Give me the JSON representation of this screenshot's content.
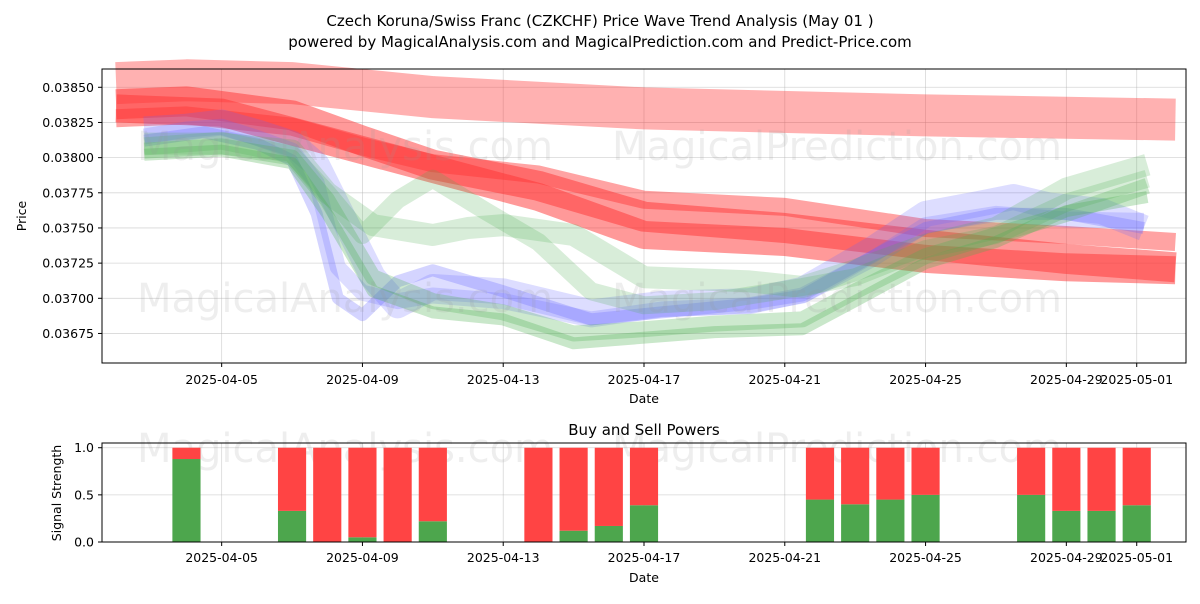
{
  "title_line1": "Czech Koruna/Swiss Franc (CZKCHF) Price Wave Trend Analysis (May 01 )",
  "title_line2": "powered by MagicalAnalysis.com and MagicalPrediction.com and Predict-Price.com",
  "watermarks": [
    "MagicalAnalysis.com",
    "MagicalPrediction.com"
  ],
  "colors": {
    "red": "#ff3333",
    "blue": "#6666ff",
    "green": "#4caf50",
    "buy": "#4da64d",
    "sell": "#ff4444"
  },
  "chart_data": [
    {
      "type": "line",
      "title": "",
      "xlabel": "Date",
      "ylabel": "Price",
      "xlim": [
        -3.4,
        27.4
      ],
      "ylim": [
        0.03654,
        0.03863
      ],
      "grid": true,
      "x_ticks": [
        {
          "day": 0,
          "label": "2025-04-05"
        },
        {
          "day": 4,
          "label": "2025-04-09"
        },
        {
          "day": 8,
          "label": "2025-04-13"
        },
        {
          "day": 12,
          "label": "2025-04-17"
        },
        {
          "day": 16,
          "label": "2025-04-21"
        },
        {
          "day": 20,
          "label": "2025-04-25"
        },
        {
          "day": 24,
          "label": "2025-04-29"
        },
        {
          "day": 26,
          "label": "2025-05-01"
        }
      ],
      "y_ticks": [
        {
          "value": 0.03675,
          "label": "0.03675"
        },
        {
          "value": 0.037,
          "label": "0.03700"
        },
        {
          "value": 0.03725,
          "label": "0.03725"
        },
        {
          "value": 0.0375,
          "label": "0.03750"
        },
        {
          "value": 0.03775,
          "label": "0.03775"
        },
        {
          "value": 0.038,
          "label": "0.03800"
        },
        {
          "value": 0.03825,
          "label": "0.03825"
        },
        {
          "value": 0.0385,
          "label": "0.03850"
        }
      ],
      "series": [
        {
          "name": "red-trend-1",
          "color": "red",
          "x": [
            -3,
            -1,
            2,
            6,
            12,
            20,
            27.1
          ],
          "y": [
            0.03853,
            0.03855,
            0.03853,
            0.03843,
            0.03835,
            0.0383,
            0.03827
          ]
        },
        {
          "name": "red-trend-2",
          "color": "red",
          "x": [
            -3,
            -1,
            2,
            4,
            6,
            9,
            12,
            16,
            20,
            24,
            27.1
          ],
          "y": [
            0.03838,
            0.0384,
            0.0383,
            0.03812,
            0.03795,
            0.0378,
            0.03758,
            0.0375,
            0.03738,
            0.03728,
            0.03722
          ]
        },
        {
          "name": "red-trend-3",
          "color": "red",
          "x": [
            -3,
            -1,
            2,
            4,
            6,
            9,
            12,
            16,
            20,
            24,
            27.1
          ],
          "y": [
            0.03828,
            0.0383,
            0.03822,
            0.03808,
            0.03796,
            0.03788,
            0.0377,
            0.03765,
            0.0375,
            0.03745,
            0.0374
          ]
        },
        {
          "name": "red-trend-4",
          "color": "red",
          "x": [
            -3,
            0,
            3,
            6,
            9,
            12,
            16,
            20,
            24,
            27.1
          ],
          "y": [
            0.03835,
            0.03832,
            0.03812,
            0.03792,
            0.03772,
            0.03745,
            0.0374,
            0.03728,
            0.03722,
            0.0372
          ]
        },
        {
          "name": "blue-wave-1",
          "color": "blue",
          "x": [
            -2.2,
            -1,
            0,
            1,
            2,
            2.7,
            3.5,
            4.3,
            5,
            6,
            8,
            10.5,
            12.5,
            15,
            16.5,
            18.5,
            20,
            21.5,
            22.5,
            23.5,
            25,
            26.2
          ],
          "y": [
            0.0382,
            0.03822,
            0.03825,
            0.03818,
            0.0381,
            0.03795,
            0.03755,
            0.03715,
            0.03695,
            0.03708,
            0.03705,
            0.0369,
            0.03696,
            0.03698,
            0.03706,
            0.03735,
            0.0376,
            0.03767,
            0.03772,
            0.03766,
            0.03762,
            0.0375
          ]
        },
        {
          "name": "blue-wave-2",
          "color": "blue",
          "x": [
            -2.2,
            -1,
            0,
            1,
            2,
            2.7,
            3.3,
            4,
            5,
            6,
            8,
            10.5,
            12.5,
            15,
            16.5,
            18.5,
            20,
            22,
            24,
            26.2
          ],
          "y": [
            0.03815,
            0.0382,
            0.03822,
            0.03814,
            0.03805,
            0.03782,
            0.03722,
            0.03704,
            0.03698,
            0.03702,
            0.03698,
            0.03685,
            0.03692,
            0.03695,
            0.03702,
            0.03728,
            0.03752,
            0.0376,
            0.03756,
            0.03755
          ]
        },
        {
          "name": "blue-wave-3",
          "color": "blue",
          "x": [
            -2.2,
            -0.5,
            1,
            2,
            2.7,
            3.3,
            4,
            5,
            6,
            8,
            10.5,
            12.5,
            15,
            16.5,
            18.5,
            20,
            22,
            24,
            26.2
          ],
          "y": [
            0.03812,
            0.03818,
            0.0381,
            0.03798,
            0.0376,
            0.037,
            0.03688,
            0.03712,
            0.0372,
            0.03705,
            0.03685,
            0.0369,
            0.03696,
            0.03702,
            0.0373,
            0.0375,
            0.0376,
            0.0376,
            0.0375
          ]
        },
        {
          "name": "green-wave-1",
          "color": "green",
          "x": [
            -2.2,
            0,
            2,
            3,
            4.3,
            6,
            7,
            8,
            10,
            12,
            15,
            16.5,
            18,
            20,
            22,
            24,
            26.3
          ],
          "y": [
            0.0381,
            0.0381,
            0.03805,
            0.03775,
            0.03752,
            0.03745,
            0.0375,
            0.03752,
            0.03745,
            0.03715,
            0.03712,
            0.03708,
            0.0372,
            0.03738,
            0.0375,
            0.03778,
            0.03795
          ]
        },
        {
          "name": "green-wave-2",
          "color": "green",
          "x": [
            -2.2,
            0,
            2,
            3,
            4,
            5,
            6,
            7.5,
            9,
            10.5,
            12,
            14,
            16.5,
            18,
            20,
            22,
            24,
            26.3
          ],
          "y": [
            0.03808,
            0.03812,
            0.03802,
            0.03775,
            0.03745,
            0.0377,
            0.03785,
            0.03762,
            0.0374,
            0.03705,
            0.03695,
            0.03698,
            0.03708,
            0.03715,
            0.03735,
            0.03745,
            0.03768,
            0.03785
          ]
        },
        {
          "name": "green-wave-3",
          "color": "green",
          "x": [
            -2.2,
            0,
            2,
            3,
            4.3,
            6,
            8,
            10,
            12,
            14,
            16.5,
            18,
            20,
            22,
            24,
            26.3
          ],
          "y": [
            0.03805,
            0.03808,
            0.038,
            0.0377,
            0.03715,
            0.03698,
            0.0369,
            0.03675,
            0.03678,
            0.03682,
            0.03685,
            0.03705,
            0.0373,
            0.03745,
            0.0376,
            0.0378
          ]
        },
        {
          "name": "green-wave-4",
          "color": "green",
          "x": [
            -2.2,
            0,
            2,
            3,
            4.3,
            6,
            8,
            10,
            12,
            14,
            16.5,
            18,
            20,
            22,
            24,
            26.3
          ],
          "y": [
            0.03802,
            0.03805,
            0.03796,
            0.0376,
            0.03705,
            0.0369,
            0.03685,
            0.03668,
            0.03672,
            0.03676,
            0.03678,
            0.03698,
            0.03725,
            0.0374,
            0.03762,
            0.03772
          ]
        }
      ]
    },
    {
      "type": "bar",
      "title": "Buy and Sell Powers",
      "xlabel": "Date",
      "ylabel": "Signal Strength",
      "xlim": [
        -3.4,
        27.4
      ],
      "ylim": [
        0,
        1.05
      ],
      "grid": true,
      "stacked": true,
      "y_ticks": [
        {
          "value": 0,
          "label": "0.0"
        },
        {
          "value": 0.5,
          "label": "0.5"
        },
        {
          "value": 1.0,
          "label": "1.0"
        }
      ],
      "x_ticks": [
        {
          "day": 0,
          "label": "2025-04-05"
        },
        {
          "day": 4,
          "label": "2025-04-09"
        },
        {
          "day": 8,
          "label": "2025-04-13"
        },
        {
          "day": 12,
          "label": "2025-04-17"
        },
        {
          "day": 16,
          "label": "2025-04-21"
        },
        {
          "day": 20,
          "label": "2025-04-25"
        },
        {
          "day": 24,
          "label": "2025-04-29"
        },
        {
          "day": 26,
          "label": "2025-05-01"
        }
      ],
      "x": [
        -1,
        2,
        3,
        4,
        5,
        6,
        9,
        10,
        11,
        12,
        17,
        18,
        19,
        20,
        23,
        24,
        25,
        26
      ],
      "series": [
        {
          "name": "Buy",
          "color": "buy",
          "values": [
            0.88,
            0.33,
            0.0,
            0.05,
            0.0,
            0.22,
            0.0,
            0.12,
            0.17,
            0.39,
            0.45,
            0.4,
            0.45,
            0.5,
            0.5,
            0.33,
            0.33,
            0.39
          ]
        },
        {
          "name": "Sell",
          "color": "sell",
          "values": [
            0.12,
            0.67,
            1.0,
            0.95,
            1.0,
            0.78,
            1.0,
            0.88,
            0.83,
            0.61,
            0.55,
            0.6,
            0.55,
            0.5,
            0.5,
            0.67,
            0.67,
            0.61
          ]
        }
      ]
    }
  ]
}
